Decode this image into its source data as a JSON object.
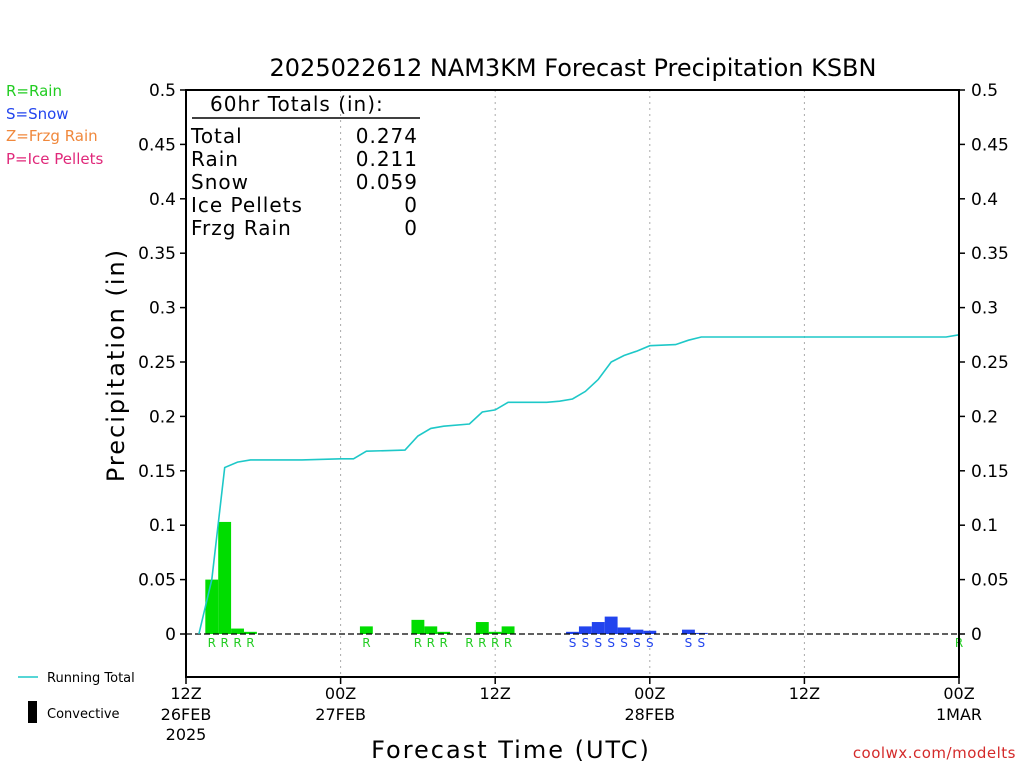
{
  "chart_data": {
    "type": "bar",
    "title": "2025022612 NAM3KM Forecast Precipitation KSBN",
    "xlabel": "Forecast Time (UTC)",
    "ylabel": "Precipitation (in)",
    "ylim": [
      -0.04,
      0.5
    ],
    "xlim_hours": [
      0,
      60
    ],
    "y_ticks": [
      "0",
      "0.05",
      "0.1",
      "0.15",
      "0.2",
      "0.25",
      "0.3",
      "0.35",
      "0.4",
      "0.45",
      "0.5"
    ],
    "x_ticks": [
      {
        "hour": 0,
        "label": "12Z",
        "date": "26FEB",
        "year": "2025"
      },
      {
        "hour": 12,
        "label": "00Z",
        "date": "27FEB",
        "year": ""
      },
      {
        "hour": 24,
        "label": "12Z",
        "date": "",
        "year": ""
      },
      {
        "hour": 36,
        "label": "00Z",
        "date": "28FEB",
        "year": ""
      },
      {
        "hour": 48,
        "label": "12Z",
        "date": "",
        "year": ""
      },
      {
        "hour": 60,
        "label": "00Z",
        "date": "1MAR",
        "year": ""
      }
    ],
    "grid": "vertical dotted lines at 00Z and 12Z",
    "totals_box": {
      "header": "60hr Totals (in):",
      "rows": [
        {
          "label": "Total",
          "value": "0.274"
        },
        {
          "label": "Rain",
          "value": "0.211"
        },
        {
          "label": "Snow",
          "value": "0.059"
        },
        {
          "label": "Ice Pellets",
          "value": "0"
        },
        {
          "label": "Frzg Rain",
          "value": "0"
        }
      ]
    },
    "bars": [
      {
        "hour": 2,
        "value": 0.05,
        "type": "R"
      },
      {
        "hour": 3,
        "value": 0.103,
        "type": "R"
      },
      {
        "hour": 4,
        "value": 0.005,
        "type": "R"
      },
      {
        "hour": 5,
        "value": 0.002,
        "type": "R"
      },
      {
        "hour": 14,
        "value": 0.007,
        "type": "R"
      },
      {
        "hour": 18,
        "value": 0.013,
        "type": "R"
      },
      {
        "hour": 19,
        "value": 0.007,
        "type": "R"
      },
      {
        "hour": 20,
        "value": 0.002,
        "type": "R"
      },
      {
        "hour": 23,
        "value": 0.011,
        "type": "R"
      },
      {
        "hour": 24,
        "value": 0.002,
        "type": "R"
      },
      {
        "hour": 25,
        "value": 0.007,
        "type": "R"
      },
      {
        "hour": 30,
        "value": 0.002,
        "type": "S"
      },
      {
        "hour": 31,
        "value": 0.007,
        "type": "S"
      },
      {
        "hour": 32,
        "value": 0.011,
        "type": "S"
      },
      {
        "hour": 33,
        "value": 0.016,
        "type": "S"
      },
      {
        "hour": 34,
        "value": 0.006,
        "type": "S"
      },
      {
        "hour": 35,
        "value": 0.004,
        "type": "S"
      },
      {
        "hour": 36,
        "value": 0.003,
        "type": "S"
      },
      {
        "hour": 39,
        "value": 0.004,
        "type": "S"
      },
      {
        "hour": 40,
        "value": 0.001,
        "type": "S"
      }
    ],
    "type_markers": [
      {
        "hour": 2,
        "type": "R"
      },
      {
        "hour": 3,
        "type": "R"
      },
      {
        "hour": 4,
        "type": "R"
      },
      {
        "hour": 5,
        "type": "R"
      },
      {
        "hour": 14,
        "type": "R"
      },
      {
        "hour": 18,
        "type": "R"
      },
      {
        "hour": 19,
        "type": "R"
      },
      {
        "hour": 20,
        "type": "R"
      },
      {
        "hour": 22,
        "type": "R"
      },
      {
        "hour": 23,
        "type": "R"
      },
      {
        "hour": 24,
        "type": "R"
      },
      {
        "hour": 25,
        "type": "R"
      },
      {
        "hour": 30,
        "type": "S"
      },
      {
        "hour": 31,
        "type": "S"
      },
      {
        "hour": 32,
        "type": "S"
      },
      {
        "hour": 33,
        "type": "S"
      },
      {
        "hour": 34,
        "type": "S"
      },
      {
        "hour": 35,
        "type": "S"
      },
      {
        "hour": 36,
        "type": "S"
      },
      {
        "hour": 39,
        "type": "S"
      },
      {
        "hour": 40,
        "type": "S"
      },
      {
        "hour": 60,
        "type": "R"
      }
    ],
    "running_total": [
      {
        "hour": 1,
        "value": 0.0
      },
      {
        "hour": 2,
        "value": 0.05
      },
      {
        "hour": 3,
        "value": 0.153
      },
      {
        "hour": 4,
        "value": 0.158
      },
      {
        "hour": 5,
        "value": 0.16
      },
      {
        "hour": 6,
        "value": 0.16
      },
      {
        "hour": 9,
        "value": 0.16
      },
      {
        "hour": 12,
        "value": 0.161
      },
      {
        "hour": 13,
        "value": 0.161
      },
      {
        "hour": 14,
        "value": 0.168
      },
      {
        "hour": 17,
        "value": 0.169
      },
      {
        "hour": 18,
        "value": 0.182
      },
      {
        "hour": 19,
        "value": 0.189
      },
      {
        "hour": 20,
        "value": 0.191
      },
      {
        "hour": 22,
        "value": 0.193
      },
      {
        "hour": 23,
        "value": 0.204
      },
      {
        "hour": 24,
        "value": 0.206
      },
      {
        "hour": 25,
        "value": 0.213
      },
      {
        "hour": 28,
        "value": 0.213
      },
      {
        "hour": 29,
        "value": 0.214
      },
      {
        "hour": 30,
        "value": 0.216
      },
      {
        "hour": 31,
        "value": 0.223
      },
      {
        "hour": 32,
        "value": 0.234
      },
      {
        "hour": 33,
        "value": 0.25
      },
      {
        "hour": 34,
        "value": 0.256
      },
      {
        "hour": 35,
        "value": 0.26
      },
      {
        "hour": 36,
        "value": 0.265
      },
      {
        "hour": 38,
        "value": 0.266
      },
      {
        "hour": 39,
        "value": 0.27
      },
      {
        "hour": 40,
        "value": 0.273
      },
      {
        "hour": 59,
        "value": 0.273
      },
      {
        "hour": 60,
        "value": 0.275
      }
    ],
    "series_legend": [
      {
        "label": "Running Total",
        "color": "#1ec8c8"
      },
      {
        "label": "Convective",
        "color": "#000000"
      }
    ]
  },
  "type_legend": [
    {
      "text": "R=Rain",
      "color": "#22cc22"
    },
    {
      "text": "S=Snow",
      "color": "#2244ee"
    },
    {
      "text": "Z=Frzg Rain",
      "color": "#f0883c"
    },
    {
      "text": "P=Ice Pellets",
      "color": "#e0287a"
    }
  ],
  "colors": {
    "rain": "#00dd00",
    "rain_text": "#22cc22",
    "snow": "#2244ee",
    "running_total": "#1ec8c8",
    "grid": "#aaaaaa"
  },
  "credit": "coolwx.com/modelts"
}
